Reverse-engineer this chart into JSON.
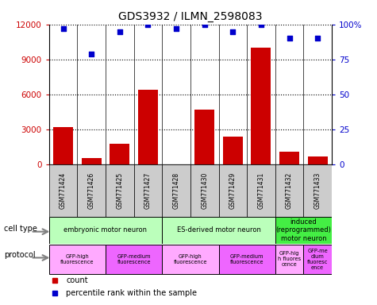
{
  "title": "GDS3932 / ILMN_2598083",
  "samples": [
    "GSM771424",
    "GSM771426",
    "GSM771425",
    "GSM771427",
    "GSM771428",
    "GSM771430",
    "GSM771429",
    "GSM771431",
    "GSM771432",
    "GSM771433"
  ],
  "counts": [
    3200,
    600,
    1800,
    6400,
    0,
    4700,
    2400,
    10000,
    1100,
    700
  ],
  "percentiles": [
    97,
    79,
    95,
    100,
    97,
    100,
    95,
    100,
    90,
    90
  ],
  "bar_color": "#cc0000",
  "dot_color": "#0000cc",
  "left_yaxis_color": "#cc0000",
  "right_yaxis_color": "#0000cc",
  "ylim_left": [
    0,
    12000
  ],
  "ylim_right": [
    0,
    100
  ],
  "yticks_left": [
    0,
    3000,
    6000,
    9000,
    12000
  ],
  "ytick_labels_left": [
    "0",
    "3000",
    "6000",
    "9000",
    "12000"
  ],
  "yticks_right": [
    0,
    25,
    50,
    75,
    100
  ],
  "ytick_labels_right": [
    "0",
    "25",
    "50",
    "75",
    "100%"
  ],
  "cell_type_groups": [
    {
      "label": "embryonic motor neuron",
      "start": 0,
      "end": 3,
      "color": "#bbffbb"
    },
    {
      "label": "ES-derived motor neuron",
      "start": 4,
      "end": 7,
      "color": "#bbffbb"
    },
    {
      "label": "induced\n(reprogrammed)\nmotor neuron",
      "start": 8,
      "end": 9,
      "color": "#44ee44"
    }
  ],
  "protocol_groups": [
    {
      "label": "GFP-high\nfluorescence",
      "start": 0,
      "end": 1,
      "color": "#ffaaff"
    },
    {
      "label": "GFP-medium\nfluorescence",
      "start": 2,
      "end": 3,
      "color": "#ee66ff"
    },
    {
      "label": "GFP-high\nfluorescence",
      "start": 4,
      "end": 5,
      "color": "#ffaaff"
    },
    {
      "label": "GFP-medium\nfluorescence",
      "start": 6,
      "end": 7,
      "color": "#ee66ff"
    },
    {
      "label": "GFP-hig\nh fluores\ncence",
      "start": 8,
      "end": 8,
      "color": "#ffaaff"
    },
    {
      "label": "GFP-me\ndium\nfluoresc\nence",
      "start": 9,
      "end": 9,
      "color": "#ee66ff"
    }
  ],
  "background_color": "#ffffff",
  "sample_bg_color": "#cccccc",
  "legend_items": [
    {
      "marker": "s",
      "color": "#cc0000",
      "label": "count"
    },
    {
      "marker": "s",
      "color": "#0000cc",
      "label": "percentile rank within the sample"
    }
  ]
}
